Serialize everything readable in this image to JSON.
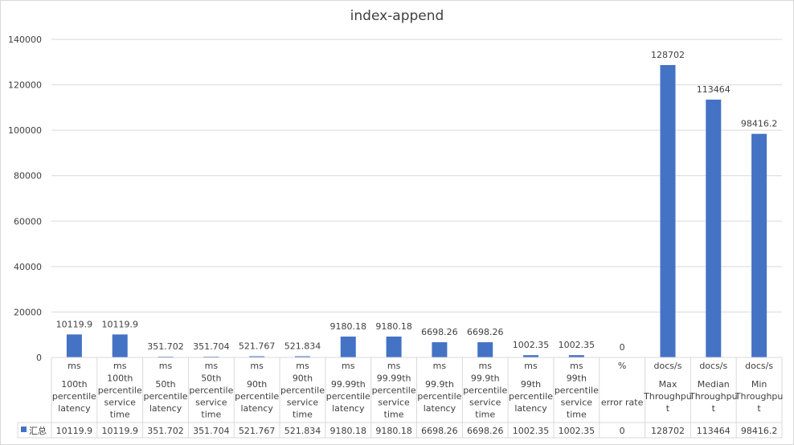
{
  "chart_data": {
    "type": "bar",
    "title": "index-append",
    "ylim": [
      0,
      140000
    ],
    "yticks": [
      0,
      20000,
      40000,
      60000,
      80000,
      100000,
      120000,
      140000
    ],
    "grid": true,
    "legend_placement": "bottom-left (data table)",
    "categories": [
      {
        "unit": "ms",
        "label": [
          "100th",
          "percentile",
          "latency"
        ]
      },
      {
        "unit": "ms",
        "label": [
          "100th",
          "percentile",
          "service",
          "time"
        ]
      },
      {
        "unit": "ms",
        "label": [
          "50th",
          "percentile",
          "latency"
        ]
      },
      {
        "unit": "ms",
        "label": [
          "50th",
          "percentile",
          "service",
          "time"
        ]
      },
      {
        "unit": "ms",
        "label": [
          "90th",
          "percentile",
          "latency"
        ]
      },
      {
        "unit": "ms",
        "label": [
          "90th",
          "percentile",
          "service",
          "time"
        ]
      },
      {
        "unit": "ms",
        "label": [
          "99.99th",
          "percentile",
          "latency"
        ]
      },
      {
        "unit": "ms",
        "label": [
          "99.99th",
          "percentile",
          "service",
          "time"
        ]
      },
      {
        "unit": "ms",
        "label": [
          "99.9th",
          "percentile",
          "latency"
        ]
      },
      {
        "unit": "ms",
        "label": [
          "99.9th",
          "percentile",
          "service",
          "time"
        ]
      },
      {
        "unit": "ms",
        "label": [
          "99th",
          "percentile",
          "latency"
        ]
      },
      {
        "unit": "ms",
        "label": [
          "99th",
          "percentile",
          "service",
          "time"
        ]
      },
      {
        "unit": "%",
        "label": [
          "",
          "error rate"
        ]
      },
      {
        "unit": "docs/s",
        "label": [
          "Max",
          "Throughpu",
          "t"
        ]
      },
      {
        "unit": "docs/s",
        "label": [
          "Median",
          "Throughpu",
          "t"
        ]
      },
      {
        "unit": "docs/s",
        "label": [
          "Min",
          "Throughpu",
          "t"
        ]
      }
    ],
    "series": [
      {
        "name": "汇总",
        "color": "#4472c4",
        "values": [
          10119.9,
          10119.9,
          351.702,
          351.704,
          521.767,
          521.834,
          9180.18,
          9180.18,
          6698.26,
          6698.26,
          1002.35,
          1002.35,
          0,
          128702,
          113464,
          98416.2
        ],
        "labels": [
          "10119.9",
          "10119.9",
          "351.702",
          "351.704",
          "521.767",
          "521.834",
          "9180.18",
          "9180.18",
          "6698.26",
          "6698.26",
          "1002.35",
          "1002.35",
          "0",
          "128702",
          "113464",
          "98416.2"
        ]
      }
    ]
  }
}
